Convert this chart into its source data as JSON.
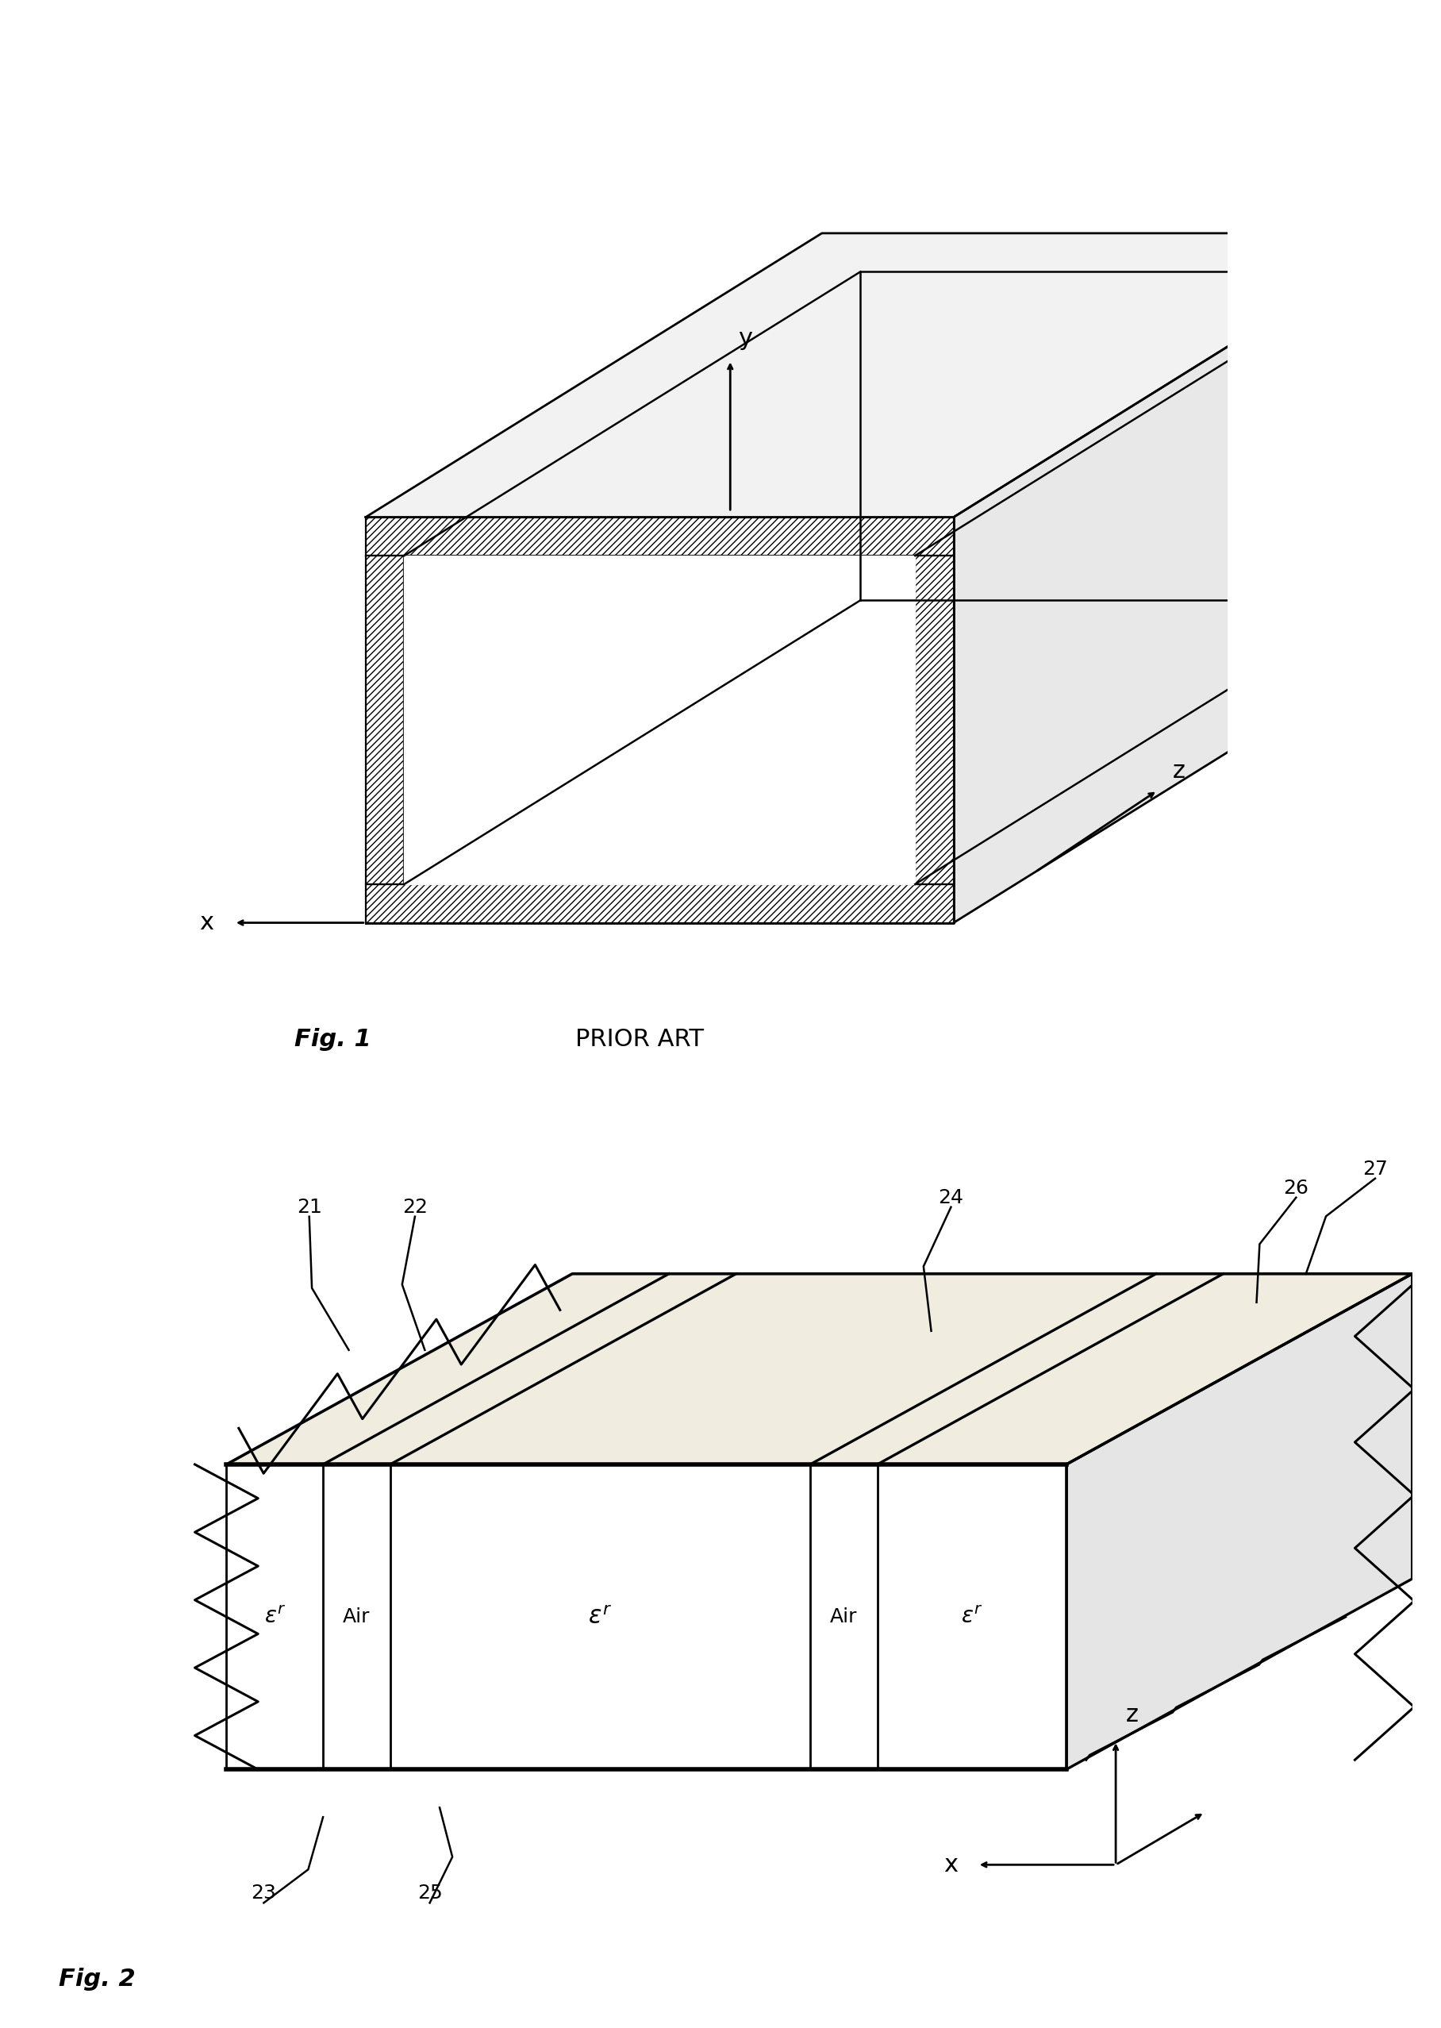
{
  "background_color": "#ffffff",
  "fig_width": 18.16,
  "fig_height": 25.55,
  "fig1_label": "Fig. 1",
  "fig1_subtitle": "PRIOR ART",
  "fig2_label": "Fig. 2",
  "label_fontsize": 22,
  "subtitle_fontsize": 22,
  "axis_label_fontsize": 20,
  "annotation_fontsize": 18,
  "number_fontsize": 18,
  "hatch_pattern": "////",
  "line_color": "#000000",
  "lw": 2.0
}
